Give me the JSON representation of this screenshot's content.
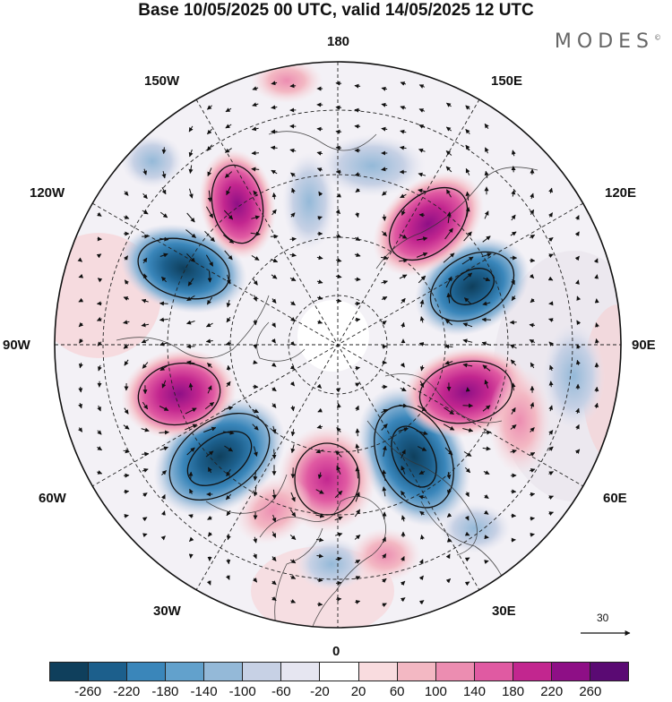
{
  "header": {
    "title": "Base 10/05/2025 00 UTC, valid 14/05/2025 12 UTC",
    "brand": "MODES"
  },
  "map": {
    "projection": "north-polar-stereographic",
    "longitude_labels": [
      "180",
      "150E",
      "120E",
      "90E",
      "60E",
      "30E",
      "0",
      "30W",
      "60W",
      "90W",
      "120W",
      "150W"
    ],
    "positive_centers": [
      {
        "name": "anomaly-high-nw",
        "value": 220
      },
      {
        "name": "anomaly-high-ne",
        "value": 220
      },
      {
        "name": "anomaly-high-e",
        "value": 220
      },
      {
        "name": "anomaly-high-south",
        "value": 200
      },
      {
        "name": "anomaly-high-w",
        "value": 220
      },
      {
        "name": "anomaly-high-ssw",
        "value": 140
      }
    ],
    "negative_centers": [
      {
        "name": "anomaly-low-nw",
        "value": -220
      },
      {
        "name": "anomaly-low-ne",
        "value": -220
      },
      {
        "name": "anomaly-low-se",
        "value": -220
      },
      {
        "name": "anomaly-low-sw",
        "value": -260
      }
    ],
    "wind_reference_label": "30"
  },
  "colorbar": {
    "ticks": [
      "-260",
      "-220",
      "-180",
      "-140",
      "-100",
      "-60",
      "-20",
      "20",
      "60",
      "100",
      "140",
      "180",
      "220",
      "260"
    ],
    "colors": [
      "#0f3f5c",
      "#1c5f8c",
      "#3a86ba",
      "#62a1cc",
      "#94b9d8",
      "#c7d1e5",
      "#e6e6f1",
      "#ffffff",
      "#f9dcdf",
      "#f3b8c3",
      "#ec8db1",
      "#e05aa2",
      "#c2268f",
      "#8e0f86",
      "#5a0a73"
    ]
  }
}
